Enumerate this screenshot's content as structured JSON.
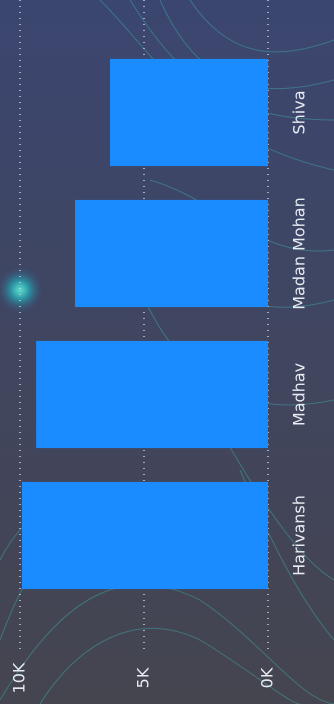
{
  "chart_data": {
    "type": "bar",
    "orientation": "rotated",
    "categories": [
      "Shiva",
      "Madan Mohan",
      "Madhav",
      "Harivansh"
    ],
    "values": [
      6370,
      7780,
      9350,
      9920
    ],
    "color": "#1a8cff",
    "ylim": [
      0,
      10000
    ],
    "yticks": [
      {
        "value": 0,
        "label": "0K"
      },
      {
        "value": 5000,
        "label": "5K"
      },
      {
        "value": 10000,
        "label": "10K"
      }
    ],
    "grid": true
  }
}
